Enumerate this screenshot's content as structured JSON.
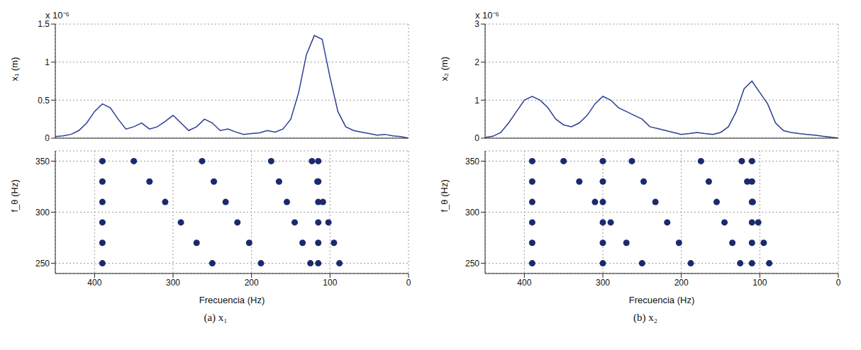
{
  "chart_data": [
    {
      "type": "line",
      "y_label": "x₁ (m)",
      "y_multiplier": "x 10⁻⁶",
      "x": [
        0,
        10,
        20,
        30,
        40,
        50,
        60,
        70,
        80,
        90,
        100,
        110,
        120,
        130,
        140,
        150,
        160,
        170,
        180,
        190,
        200,
        210,
        220,
        230,
        240,
        250,
        260,
        270,
        280,
        290,
        300,
        310,
        320,
        330,
        340,
        350,
        360,
        370,
        380,
        390,
        400,
        410,
        420,
        430,
        440,
        450
      ],
      "values": [
        0,
        0.02,
        0.03,
        0.05,
        0.04,
        0.06,
        0.08,
        0.1,
        0.15,
        0.35,
        0.8,
        1.3,
        1.35,
        1.1,
        0.6,
        0.25,
        0.12,
        0.08,
        0.1,
        0.07,
        0.06,
        0.05,
        0.08,
        0.12,
        0.1,
        0.2,
        0.25,
        0.15,
        0.1,
        0.2,
        0.3,
        0.22,
        0.15,
        0.12,
        0.2,
        0.15,
        0.12,
        0.25,
        0.4,
        0.45,
        0.35,
        0.2,
        0.1,
        0.05,
        0.03,
        0.02
      ],
      "color": "#2c3e94",
      "xlim": [
        0,
        450
      ],
      "xticks": [
        0,
        100,
        200,
        300,
        400
      ],
      "ylim": [
        0,
        1.5
      ],
      "yticks": [
        0,
        0.5,
        1,
        1.5
      ],
      "grid": true,
      "tick_labels": "y"
    },
    {
      "type": "scatter",
      "title": "(a) x₁",
      "x_label": "Frecuencia (Hz)",
      "y_label": "f_θ (Hz)",
      "x": [
        88,
        95,
        102,
        109,
        116,
        123,
        125,
        135,
        145,
        155,
        165,
        175,
        188,
        203,
        218,
        233,
        248,
        263,
        250,
        270,
        290,
        310,
        330,
        350,
        115,
        115,
        115,
        115,
        115,
        115,
        390,
        390,
        390,
        390,
        390,
        390
      ],
      "y": [
        250,
        270,
        290,
        310,
        330,
        350,
        250,
        270,
        290,
        310,
        330,
        350,
        250,
        270,
        290,
        310,
        330,
        350,
        250,
        270,
        290,
        310,
        330,
        350,
        250,
        270,
        290,
        310,
        330,
        350,
        250,
        270,
        290,
        310,
        330,
        350
      ],
      "color": "#1b2a6e",
      "xlim": [
        0,
        450
      ],
      "xticks": [
        0,
        100,
        200,
        300,
        400
      ],
      "ylim": [
        240,
        360
      ],
      "yticks": [
        250,
        300,
        350
      ],
      "grid": true
    },
    {
      "type": "line",
      "y_label": "x₂ (m)",
      "y_multiplier": "x 10⁻⁶",
      "x": [
        0,
        10,
        20,
        30,
        40,
        50,
        60,
        70,
        80,
        90,
        100,
        110,
        120,
        130,
        140,
        150,
        160,
        170,
        180,
        190,
        200,
        210,
        220,
        230,
        240,
        250,
        260,
        270,
        280,
        290,
        300,
        310,
        320,
        330,
        340,
        350,
        360,
        370,
        380,
        390,
        400,
        410,
        420,
        430,
        440,
        450
      ],
      "values": [
        0,
        0.03,
        0.05,
        0.08,
        0.1,
        0.12,
        0.15,
        0.2,
        0.4,
        0.9,
        1.2,
        1.5,
        1.3,
        0.7,
        0.3,
        0.15,
        0.1,
        0.12,
        0.15,
        0.12,
        0.1,
        0.15,
        0.2,
        0.25,
        0.3,
        0.5,
        0.6,
        0.7,
        0.8,
        1.0,
        1.1,
        0.9,
        0.6,
        0.4,
        0.3,
        0.35,
        0.5,
        0.8,
        1.0,
        1.1,
        1.0,
        0.7,
        0.4,
        0.15,
        0.05,
        0.02
      ],
      "color": "#2c3e94",
      "xlim": [
        0,
        450
      ],
      "xticks": [
        0,
        100,
        200,
        300,
        400
      ],
      "ylim": [
        0,
        3
      ],
      "yticks": [
        0,
        1,
        2,
        3
      ],
      "grid": true,
      "tick_labels": "y"
    },
    {
      "type": "scatter",
      "title": "(b) x₂",
      "x_label": "Frecuencia (Hz)",
      "y_label": "f_θ (Hz)",
      "x": [
        88,
        95,
        102,
        109,
        116,
        123,
        125,
        135,
        145,
        155,
        165,
        175,
        188,
        203,
        218,
        233,
        248,
        263,
        250,
        270,
        290,
        310,
        330,
        350,
        110,
        110,
        110,
        110,
        110,
        110,
        300,
        300,
        300,
        300,
        300,
        300,
        390,
        390,
        390,
        390,
        390,
        390
      ],
      "y": [
        250,
        270,
        290,
        310,
        330,
        350,
        250,
        270,
        290,
        310,
        330,
        350,
        250,
        270,
        290,
        310,
        330,
        350,
        250,
        270,
        290,
        310,
        330,
        350,
        250,
        270,
        290,
        310,
        330,
        350,
        250,
        270,
        290,
        310,
        330,
        350,
        250,
        270,
        290,
        310,
        330,
        350
      ],
      "color": "#1b2a6e",
      "xlim": [
        0,
        450
      ],
      "xticks": [
        0,
        100,
        200,
        300,
        400
      ],
      "ylim": [
        240,
        360
      ],
      "yticks": [
        250,
        300,
        350
      ],
      "grid": true
    }
  ]
}
